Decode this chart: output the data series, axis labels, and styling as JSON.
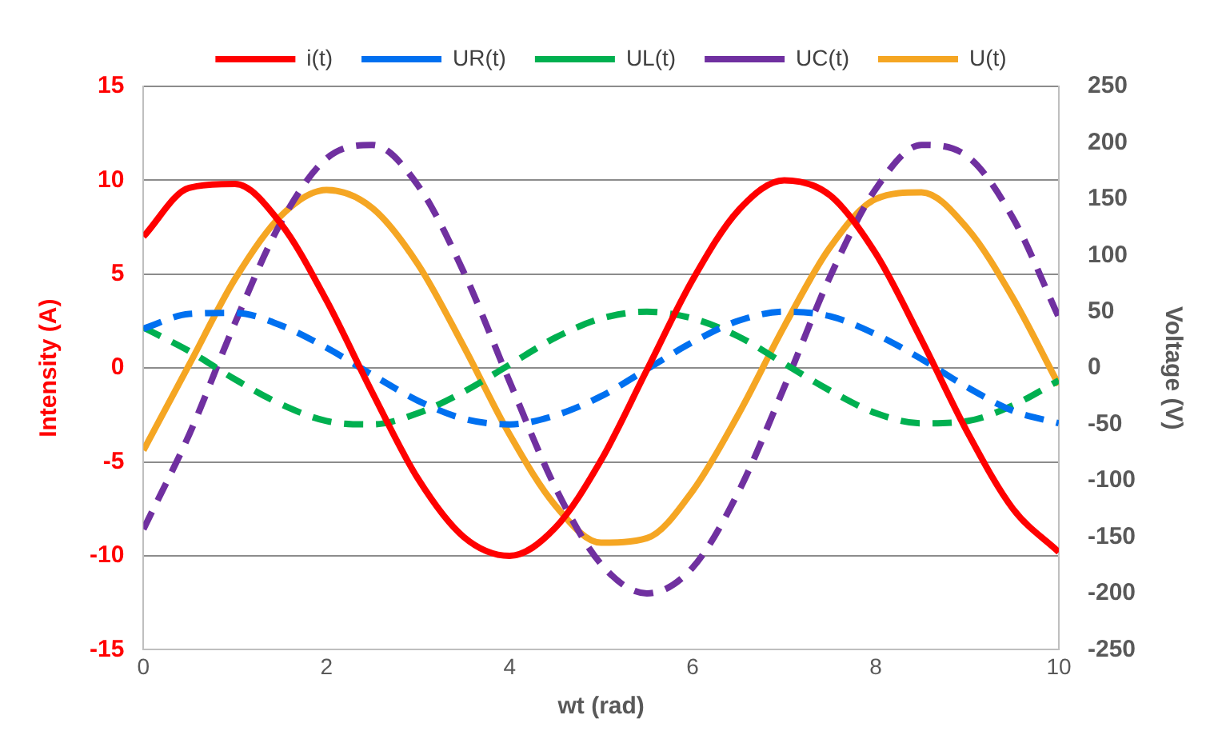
{
  "chart_data": {
    "type": "line",
    "xlabel": "wt (rad)",
    "ylabel": "Intensity (A)",
    "y2label": "Voltage (V)",
    "x": [
      0,
      0.5,
      1,
      1.5,
      2,
      2.5,
      3,
      3.5,
      4,
      4.5,
      5,
      5.5,
      6,
      6.5,
      7,
      7.5,
      8,
      8.5,
      9,
      9.5,
      10
    ],
    "series": [
      {
        "name": "i(t)",
        "color": "#ff0000",
        "line_style": "solid",
        "values": [
          7.0,
          9.6,
          9.8,
          7.7,
          3.6,
          -1.3,
          -5.9,
          -9.0,
          -10.0,
          -8.5,
          -4.9,
          -0.1,
          4.7,
          8.4,
          10.0,
          9.2,
          6.1,
          1.5,
          -3.4,
          -7.5,
          -9.8
        ]
      },
      {
        "name": "UR(t)",
        "color": "#0070f0",
        "line_style": "dashed",
        "axis": "y2",
        "values": [
          35,
          48,
          49,
          38,
          18,
          -6,
          -29,
          -45,
          -50,
          -42,
          -25,
          -1,
          23,
          42,
          50,
          46,
          30,
          8,
          -17,
          -38,
          -49
        ]
      },
      {
        "name": "UL(t)",
        "color": "#00b050",
        "line_style": "dashed",
        "axis": "y2",
        "values": [
          36,
          15,
          -10,
          -32,
          -47,
          -50,
          -40,
          -21,
          3,
          27,
          44,
          50,
          44,
          28,
          4,
          -20,
          -40,
          -49,
          -47,
          -33,
          -11
        ]
      },
      {
        "name": "UC(t)",
        "color": "#7030a0",
        "line_style": "dashed",
        "axis": "y2",
        "values": [
          -143,
          -59,
          40,
          129,
          186,
          198,
          162,
          85,
          -12,
          -106,
          -174,
          -200,
          -177,
          -110,
          -17,
          81,
          159,
          198,
          188,
          133,
          45
        ]
      },
      {
        "name": "U(t)",
        "color": "#f5a623",
        "line_style": "solid",
        "axis": "y2",
        "values": [
          -73,
          3,
          79,
          135,
          158,
          142,
          92,
          19,
          -59,
          -122,
          -155,
          -151,
          -109,
          -41,
          37,
          107,
          150,
          156,
          124,
          62,
          -15
        ]
      }
    ],
    "xlim": [
      0,
      10
    ],
    "xticks": [
      0,
      2,
      4,
      6,
      8,
      10
    ],
    "ylim": [
      -15,
      15
    ],
    "yticks": [
      -15,
      -10,
      -5,
      0,
      5,
      10,
      15
    ],
    "y2lim": [
      -250,
      250
    ],
    "y2ticks": [
      -250,
      -200,
      -150,
      -100,
      -50,
      0,
      50,
      100,
      150,
      200,
      250
    ],
    "grid": "y",
    "legend": "top",
    "marker": "none"
  }
}
